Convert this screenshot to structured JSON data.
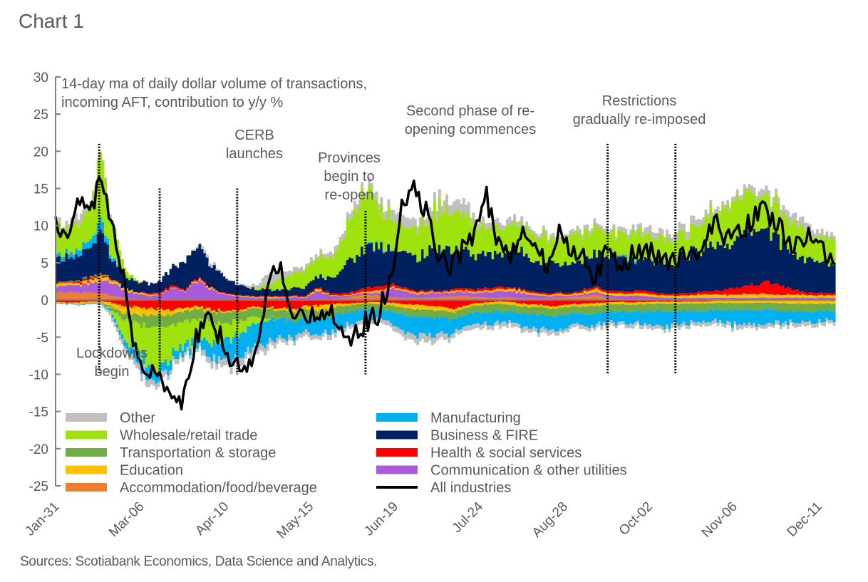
{
  "title": "Chart 1",
  "source": "Sources: Scotiabank Economics, Data Science and Analytics.",
  "chart_data": {
    "type": "bar",
    "subtype": "stacked bar with line overlay",
    "title": "Chart 1",
    "subtitle_lines": [
      "14-day ma of daily dollar volume of transactions,",
      "incoming AFT, contribution to y/y %"
    ],
    "xlabel": "",
    "ylabel": "",
    "ylim": [
      -25,
      30
    ],
    "y_ticks": [
      30,
      25,
      20,
      15,
      10,
      5,
      0,
      -5,
      -10,
      -15,
      -20,
      -25
    ],
    "x_tick_labels": [
      "Jan-31",
      "Mar-06",
      "Apr-10",
      "May-15",
      "Jun-19",
      "Jul-24",
      "Aug-28",
      "Oct-02",
      "Nov-06",
      "Dec-11"
    ],
    "x_range_days": [
      0,
      322
    ],
    "x_tick_days": [
      0,
      35,
      70,
      105,
      140,
      175,
      210,
      245,
      280,
      315
    ],
    "grid": false,
    "legend_position": "bottom-inside",
    "legend": [
      {
        "name": "Other",
        "color": "#BFBFBF",
        "kind": "bar"
      },
      {
        "name": "Wholesale/retail trade",
        "color": "#9FE20D",
        "kind": "bar"
      },
      {
        "name": "Transportation & storage",
        "color": "#70AD47",
        "kind": "bar"
      },
      {
        "name": "Education",
        "color": "#FFC000",
        "kind": "bar"
      },
      {
        "name": "Accommodation/food/beverage",
        "color": "#ED7D31",
        "kind": "bar"
      },
      {
        "name": "Manufacturing",
        "color": "#00B0F0",
        "kind": "bar"
      },
      {
        "name": "Business & FIRE",
        "color": "#002060",
        "kind": "bar"
      },
      {
        "name": "Health & social services",
        "color": "#FF0000",
        "kind": "bar"
      },
      {
        "name": "Communication & other utilities",
        "color": "#A95BDB",
        "kind": "bar"
      },
      {
        "name": "All industries",
        "color": "#000000",
        "kind": "line"
      }
    ],
    "annotations": [
      {
        "lines": [
          "Lockdowns",
          "begin"
        ],
        "event_day": 18
      },
      {
        "lines": [
          "CERB",
          "launches"
        ],
        "event_day": 43
      },
      {
        "lines": [
          "Provinces",
          "begin to",
          "re-open"
        ],
        "event_day": 75
      },
      {
        "lines": [
          "Second phase of re-",
          "opening commences"
        ],
        "event_day": 128
      },
      {
        "lines": [
          "Restrictions",
          "gradually re-imposed"
        ],
        "event_day": 228,
        "event_day_2": 256
      }
    ],
    "event_lines": [
      {
        "day": 18,
        "from": -10,
        "to": 21
      },
      {
        "day": 43,
        "from": -10,
        "to": 15
      },
      {
        "day": 75,
        "from": -10,
        "to": 15
      },
      {
        "day": 128,
        "from": -10,
        "to": 12
      },
      {
        "day": 228,
        "from": -10,
        "to": 21
      },
      {
        "day": 256,
        "from": -10,
        "to": 21
      }
    ],
    "series_order": [
      "Accommodation/food/beverage",
      "Communication & other utilities",
      "Education",
      "Health & social services",
      "Transportation & storage",
      "Business & FIRE",
      "Manufacturing",
      "Wholesale/retail trade",
      "Other"
    ],
    "keypoints": {
      "days": [
        0,
        5,
        10,
        15,
        18,
        22,
        28,
        33,
        38,
        43,
        48,
        53,
        58,
        63,
        68,
        73,
        78,
        83,
        88,
        93,
        98,
        103,
        108,
        113,
        118,
        123,
        128,
        133,
        138,
        143,
        148,
        153,
        158,
        163,
        168,
        173,
        178,
        183,
        188,
        193,
        198,
        203,
        208,
        213,
        218,
        223,
        228,
        233,
        238,
        243,
        248,
        253,
        258,
        263,
        268,
        273,
        278,
        283,
        288,
        293,
        298,
        303,
        308,
        313,
        318,
        322
      ],
      "Accommodation/food/beverage": [
        1.0,
        1.0,
        1.0,
        1.0,
        0.9,
        0.6,
        0.3,
        0.1,
        0.0,
        0.0,
        0.0,
        0.0,
        0.0,
        0.0,
        0.0,
        0.0,
        0.0,
        0.0,
        0.0,
        0.0,
        0.0,
        0.0,
        0.0,
        0.1,
        0.2,
        0.5,
        0.7,
        0.6,
        0.4,
        0.3,
        0.3,
        0.3,
        0.4,
        0.5,
        0.5,
        0.4,
        0.3,
        0.3,
        0.3,
        0.2,
        0.2,
        0.2,
        0.3,
        0.4,
        0.5,
        0.6,
        0.3,
        0.1,
        0.1,
        0.1,
        0.1,
        0.1,
        0.1,
        0.1,
        0.1,
        0.1,
        0.1,
        0.1,
        0.1,
        0.1,
        0.1,
        0.1,
        0.1,
        0.1,
        0.1,
        0.1
      ],
      "Communication & other utilities": [
        1.0,
        0.9,
        1.0,
        1.2,
        1.5,
        2.0,
        1.0,
        0.8,
        0.5,
        0.8,
        1.5,
        1.2,
        2.5,
        1.5,
        0.8,
        0.5,
        0.4,
        0.3,
        0.2,
        0.3,
        0.4,
        0.3,
        1.2,
        0.5,
        0.3,
        0.2,
        0.3,
        0.4,
        1.2,
        1.0,
        0.5,
        0.6,
        0.5,
        0.5,
        0.6,
        0.5,
        0.8,
        0.8,
        0.9,
        0.7,
        0.4,
        0.3,
        0.3,
        0.2,
        0.3,
        0.4,
        0.3,
        0.4,
        0.5,
        0.4,
        0.3,
        0.2,
        0.2,
        0.2,
        0.2,
        0.2,
        0.2,
        0.2,
        0.2,
        0.2,
        0.2,
        0.2,
        0.2,
        0.2,
        0.2,
        0.2
      ],
      "Education": [
        0.4,
        0.3,
        0.3,
        0.5,
        0.6,
        0.4,
        0.3,
        0.2,
        0.2,
        0.1,
        0.1,
        0.1,
        0.2,
        0.2,
        0.1,
        0.1,
        0.1,
        0.1,
        0.2,
        0.1,
        0.1,
        0.1,
        0.3,
        0.1,
        0.1,
        0.1,
        0.2,
        0.3,
        0.2,
        0.2,
        0.2,
        0.2,
        0.1,
        0.2,
        0.2,
        0.2,
        0.2,
        0.3,
        0.3,
        0.3,
        0.2,
        0.2,
        0.2,
        0.2,
        0.3,
        0.4,
        0.3,
        0.3,
        0.3,
        0.4,
        0.3,
        0.3,
        0.3,
        0.4,
        0.5,
        0.4,
        0.4,
        0.5,
        0.5,
        0.5,
        0.4,
        0.4,
        0.4,
        0.3,
        0.3,
        0.3
      ],
      "Health & social services": [
        0.1,
        0.1,
        0.3,
        0.3,
        0.2,
        0.1,
        0.0,
        0.0,
        0.2,
        0.2,
        0.3,
        0.2,
        0.2,
        0.1,
        0.1,
        0.1,
        0.1,
        0.1,
        0.1,
        0.1,
        0.1,
        0.1,
        0.2,
        0.2,
        0.3,
        0.3,
        0.6,
        0.5,
        0.4,
        0.3,
        0.2,
        0.2,
        0.2,
        0.2,
        0.3,
        0.3,
        0.3,
        0.3,
        0.2,
        0.2,
        0.2,
        0.2,
        0.2,
        0.2,
        0.3,
        0.3,
        0.3,
        0.3,
        0.3,
        0.4,
        0.3,
        0.2,
        0.3,
        0.3,
        0.4,
        0.5,
        0.8,
        1.0,
        1.3,
        1.6,
        1.4,
        0.8,
        0.4,
        0.3,
        0.3,
        0.3
      ],
      "Transportation & storage": [
        0.1,
        0.1,
        0.1,
        0.2,
        0.2,
        0.1,
        0.0,
        0.0,
        0.0,
        0.0,
        0.0,
        0.0,
        0.0,
        0.0,
        0.0,
        0.0,
        0.0,
        0.0,
        0.0,
        0.0,
        0.0,
        0.0,
        0.0,
        0.0,
        0.0,
        0.0,
        0.0,
        0.0,
        0.0,
        0.0,
        0.0,
        0.0,
        0.0,
        0.0,
        0.0,
        0.0,
        0.0,
        0.0,
        0.0,
        0.0,
        0.0,
        0.0,
        0.0,
        0.0,
        0.0,
        0.0,
        0.0,
        0.0,
        0.0,
        0.0,
        0.0,
        0.0,
        0.0,
        0.0,
        0.0,
        0.0,
        0.0,
        0.0,
        0.0,
        0.0,
        0.0,
        0.0,
        0.0,
        0.0,
        0.0,
        0.0
      ],
      "Business & FIRE": [
        3.0,
        3.5,
        3.2,
        4.0,
        5.5,
        3.0,
        1.5,
        1.5,
        1.2,
        1.5,
        2.5,
        3.5,
        4.5,
        3.0,
        2.5,
        1.5,
        1.2,
        1.0,
        0.8,
        0.8,
        1.0,
        1.2,
        1.5,
        2.0,
        3.5,
        4.5,
        5.5,
        5.5,
        5.0,
        4.5,
        4.5,
        5.0,
        6.0,
        5.5,
        5.0,
        4.5,
        4.5,
        4.5,
        5.0,
        5.0,
        4.5,
        4.0,
        4.0,
        4.0,
        4.2,
        4.5,
        4.5,
        4.5,
        4.0,
        4.0,
        4.0,
        4.0,
        5.0,
        5.5,
        6.0,
        6.5,
        6.0,
        6.5,
        7.5,
        7.5,
        6.0,
        5.0,
        4.5,
        4.0,
        4.0,
        4.0
      ],
      "Manufacturing": [
        0.5,
        0.6,
        0.8,
        1.0,
        1.5,
        0.5,
        0.1,
        0.0,
        0.0,
        0.0,
        0.0,
        0.0,
        0.0,
        0.0,
        0.0,
        0.0,
        0.0,
        0.0,
        0.0,
        0.0,
        0.0,
        0.0,
        0.0,
        0.0,
        0.0,
        0.0,
        0.1,
        0.2,
        0.1,
        0.0,
        0.0,
        0.0,
        0.0,
        0.0,
        0.0,
        0.0,
        0.0,
        0.0,
        0.0,
        0.0,
        0.0,
        0.0,
        0.0,
        0.0,
        0.0,
        0.0,
        0.0,
        0.2,
        0.3,
        0.0,
        0.0,
        0.0,
        0.0,
        0.0,
        0.0,
        0.0,
        0.0,
        0.0,
        0.0,
        0.0,
        0.0,
        0.0,
        0.0,
        0.0,
        0.0,
        0.0
      ],
      "Wholesale/retail trade": [
        3.5,
        3.8,
        3.5,
        5.5,
        8.0,
        5.0,
        0.8,
        0.2,
        0.0,
        0.0,
        0.0,
        0.0,
        0.0,
        0.0,
        0.0,
        0.0,
        0.0,
        0.2,
        0.8,
        1.5,
        2.0,
        2.5,
        2.5,
        2.5,
        4.0,
        6.5,
        7.0,
        5.5,
        4.0,
        3.5,
        3.8,
        4.5,
        5.5,
        5.0,
        4.5,
        4.0,
        3.5,
        3.5,
        3.5,
        3.5,
        3.5,
        3.5,
        3.5,
        3.5,
        3.8,
        3.5,
        3.0,
        3.0,
        3.5,
        3.5,
        3.2,
        3.0,
        3.0,
        3.5,
        4.0,
        4.5,
        5.0,
        5.0,
        5.0,
        4.5,
        4.0,
        4.0,
        3.8,
        3.5,
        3.2,
        3.0
      ],
      "Other": [
        0.6,
        0.8,
        1.2,
        0.3,
        0.2,
        0.3,
        0.0,
        0.0,
        0.0,
        0.0,
        0.0,
        0.0,
        0.2,
        0.5,
        0.1,
        0.1,
        0.2,
        0.5,
        1.5,
        0.8,
        0.6,
        0.4,
        0.5,
        0.6,
        0.8,
        1.0,
        0.8,
        1.0,
        1.2,
        1.5,
        1.0,
        1.0,
        1.2,
        1.5,
        1.5,
        1.0,
        0.8,
        0.8,
        0.8,
        0.6,
        0.5,
        0.5,
        0.5,
        0.6,
        0.6,
        0.5,
        0.5,
        0.5,
        0.6,
        0.8,
        0.8,
        0.8,
        1.0,
        1.0,
        0.8,
        0.5,
        0.5,
        0.6,
        0.8,
        0.8,
        0.8,
        1.0,
        1.0,
        0.8,
        0.6,
        0.5
      ],
      "neg_Health & social services": [
        -0.3,
        -0.4,
        -0.3,
        -0.2,
        -0.2,
        -0.3,
        -0.8,
        -1.0,
        -1.2,
        -1.2,
        -1.5,
        -1.0,
        -0.8,
        -1.2,
        -1.5,
        -1.4,
        -1.2,
        -1.0,
        -1.0,
        -1.0,
        -1.2,
        -0.8,
        -0.8,
        -0.6,
        -0.5,
        -0.4,
        -0.3,
        -0.3,
        -0.4,
        -0.5,
        -0.6,
        -0.8,
        -1.0,
        -1.2,
        -0.8,
        -0.4,
        -0.3,
        -0.2,
        -0.3,
        -0.5,
        -0.6,
        -0.8,
        -0.8,
        -0.6,
        -0.5,
        -0.4,
        -0.3,
        -0.3,
        -0.3,
        -0.3,
        -0.2,
        -0.2,
        -0.2,
        -0.2,
        -0.2,
        -0.1,
        -0.1,
        -0.1,
        -0.1,
        -0.1,
        -0.1,
        -0.1,
        -0.1,
        -0.1,
        -0.1,
        -0.1
      ],
      "neg_Education": [
        -0.1,
        -0.1,
        -0.3,
        -0.2,
        -0.1,
        -0.5,
        -1.0,
        -1.0,
        -1.0,
        -0.8,
        -0.6,
        -0.4,
        -0.4,
        -0.3,
        -0.2,
        -0.2,
        -0.2,
        -0.2,
        -0.2,
        -0.3,
        -0.4,
        -0.5,
        -0.8,
        -0.6,
        -0.3,
        -0.2,
        -0.2,
        -0.3,
        -0.4,
        -0.5,
        -0.6,
        -0.6,
        -0.5,
        -0.4,
        -0.3,
        -0.3,
        -0.3,
        -0.3,
        -0.4,
        -0.4,
        -0.3,
        -0.3,
        -0.3,
        -0.3,
        -0.4,
        -0.4,
        -0.3,
        -0.3,
        -0.3,
        -0.3,
        -0.3,
        -0.3,
        -0.3,
        -0.3,
        -0.3,
        -0.3,
        -0.3,
        -0.3,
        -0.3,
        -0.3,
        -0.3,
        -0.4,
        -0.4,
        -0.4,
        -0.4,
        -0.4
      ],
      "neg_Transportation & storage": [
        0.0,
        0.0,
        0.0,
        0.0,
        -0.1,
        -0.3,
        -0.8,
        -1.2,
        -1.5,
        -1.5,
        -1.5,
        -1.4,
        -1.3,
        -1.5,
        -1.5,
        -1.4,
        -1.3,
        -1.2,
        -1.2,
        -1.2,
        -1.2,
        -1.2,
        -1.2,
        -1.1,
        -1.0,
        -0.9,
        -0.8,
        -0.8,
        -0.8,
        -0.9,
        -1.0,
        -1.0,
        -1.0,
        -1.0,
        -1.0,
        -1.0,
        -1.0,
        -1.0,
        -1.0,
        -1.0,
        -1.0,
        -1.0,
        -1.0,
        -1.0,
        -1.0,
        -1.0,
        -1.0,
        -1.0,
        -1.0,
        -1.0,
        -1.0,
        -1.0,
        -1.0,
        -1.0,
        -1.0,
        -1.0,
        -1.0,
        -1.0,
        -1.0,
        -1.0,
        -1.0,
        -1.0,
        -1.0,
        -1.0,
        -1.0,
        -1.0
      ],
      "neg_Wholesale/retail trade": [
        0.0,
        0.0,
        0.0,
        0.0,
        0.0,
        -0.2,
        -2.5,
        -4.0,
        -5.0,
        -5.5,
        -4.0,
        -3.5,
        -2.5,
        -2.5,
        -2.5,
        -2.0,
        -1.5,
        -0.8,
        -0.2,
        0.0,
        0.0,
        0.0,
        0.0,
        0.0,
        0.0,
        0.0,
        0.0,
        0.0,
        0.0,
        0.0,
        0.0,
        0.0,
        0.0,
        0.0,
        0.0,
        0.0,
        0.0,
        0.0,
        0.0,
        0.0,
        0.0,
        0.0,
        0.0,
        0.0,
        0.0,
        0.0,
        0.0,
        0.0,
        0.0,
        0.0,
        0.0,
        0.0,
        0.0,
        0.0,
        0.0,
        0.0,
        0.0,
        0.0,
        0.0,
        0.0,
        0.0,
        0.0,
        0.0,
        0.0,
        0.0,
        0.0
      ],
      "neg_Manufacturing": [
        -0.1,
        -0.1,
        -0.1,
        -0.1,
        0.0,
        -0.3,
        -0.8,
        -1.5,
        -1.8,
        -1.5,
        -1.2,
        -1.0,
        -1.2,
        -2.0,
        -2.5,
        -3.0,
        -3.0,
        -3.0,
        -3.0,
        -2.5,
        -2.2,
        -2.0,
        -2.0,
        -2.0,
        -1.8,
        -1.5,
        -1.3,
        -1.2,
        -1.5,
        -2.0,
        -2.5,
        -2.5,
        -2.2,
        -1.8,
        -1.5,
        -1.5,
        -1.5,
        -1.5,
        -1.5,
        -1.8,
        -2.0,
        -2.0,
        -1.8,
        -1.5,
        -1.5,
        -1.5,
        -1.5,
        -1.5,
        -1.5,
        -1.8,
        -2.0,
        -2.0,
        -1.8,
        -1.5,
        -1.5,
        -1.5,
        -1.8,
        -2.0,
        -2.0,
        -1.8,
        -1.5,
        -1.5,
        -1.5,
        -1.5,
        -1.2,
        -1.2
      ],
      "neg_Other": [
        0.0,
        0.0,
        0.0,
        0.0,
        -0.3,
        -0.5,
        -0.8,
        -0.8,
        -0.8,
        -0.8,
        -0.6,
        -0.5,
        -0.5,
        -0.8,
        -1.0,
        -1.0,
        -1.0,
        -1.0,
        -0.8,
        -0.6,
        -0.6,
        -0.6,
        -0.6,
        -0.6,
        -0.6,
        -0.5,
        -0.5,
        -0.5,
        -0.6,
        -0.8,
        -1.0,
        -1.0,
        -0.8,
        -0.6,
        -0.6,
        -0.6,
        -0.6,
        -0.6,
        -0.6,
        -0.6,
        -0.6,
        -0.6,
        -0.5,
        -0.5,
        -0.5,
        -0.5,
        -0.5,
        -0.5,
        -0.5,
        -0.5,
        -0.5,
        -0.5,
        -0.5,
        -0.5,
        -0.5,
        -0.5,
        -0.5,
        -0.5,
        -0.5,
        -0.5,
        -0.5,
        -0.5,
        -0.5,
        -0.5,
        -0.5,
        -0.5
      ],
      "All industries": [
        10.0,
        9.5,
        13.0,
        12.0,
        17.0,
        12.0,
        3.0,
        -7.0,
        -10.0,
        -9.0,
        -14.0,
        -13.0,
        -5.0,
        -3.0,
        -5.0,
        -8.0,
        -10.0,
        -6.0,
        2.0,
        5.0,
        -2.0,
        -3.0,
        -2.0,
        -1.0,
        -4.0,
        -5.0,
        -3.0,
        -2.0,
        2.0,
        12.0,
        15.0,
        12.0,
        6.0,
        4.0,
        7.0,
        9.0,
        14.0,
        7.0,
        6.0,
        10.0,
        8.0,
        4.0,
        9.0,
        7.0,
        6.0,
        3.0,
        7.0,
        4.0,
        6.0,
        7.0,
        6.0,
        5.0,
        6.0,
        6.0,
        8.0,
        10.0,
        8.0,
        9.0,
        11.0,
        12.0,
        10.0,
        8.0,
        7.0,
        9.0,
        6.0,
        4.5
      ]
    }
  }
}
